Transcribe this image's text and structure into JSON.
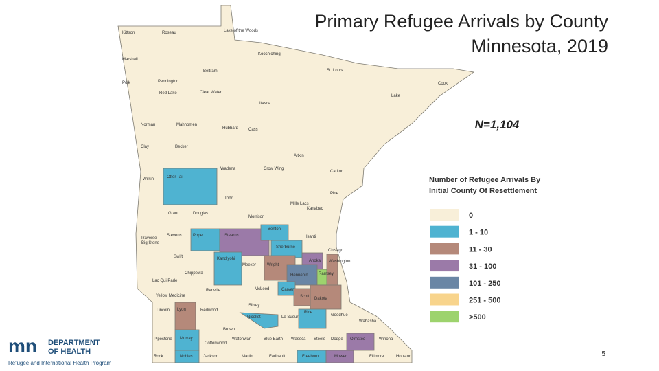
{
  "title": {
    "line1": "Primary Refugee Arrivals by County",
    "line2": "Minnesota, 2019"
  },
  "total": "N=1,104",
  "legend": {
    "title_line1": "Number of Refugee Arrivals By",
    "title_line2": "Initial County Of Resettlement",
    "items": [
      "0",
      "1 - 10",
      "11 - 30",
      "31 - 100",
      "101 - 250",
      "251 - 500",
      ">500"
    ]
  },
  "counties": [
    "Kittson",
    "Roseau",
    "Lake of the Woods",
    "Koochiching",
    "Marshall",
    "Beltrami",
    "St. Louis",
    "Cook",
    "Polk",
    "Pennington",
    "Red Lake",
    "Clear Water",
    "Lake",
    "Itasca",
    "Norman",
    "Mahnomen",
    "Hubbard",
    "Cass",
    "Clay",
    "Becker",
    "Aitkin",
    "Wadena",
    "Crow Wing",
    "Carlton",
    "Wilkin",
    "Otter Tail",
    "Todd",
    "Pine",
    "Mille Lacs",
    "Kanabec",
    "Grant",
    "Douglas",
    "Morrison",
    "Benton",
    "Isanti",
    "Traverse",
    "Stevens",
    "Pope",
    "Stearns",
    "Sherburne",
    "Chisago",
    "Big Stone",
    "Anoka",
    "Washington",
    "Swift",
    "Kandiyohi",
    "Meeker",
    "Wright",
    "Hennepin",
    "Ramsey",
    "Chippewa",
    "Lac Qui Parle",
    "Renville",
    "McLeod",
    "Carver",
    "Scott",
    "Dakota",
    "Yellow Medicine",
    "Sibley",
    "Lincoln",
    "Lyon",
    "Redwood",
    "Nicollet",
    "Le Sueur",
    "Rice",
    "Goodhue",
    "Wabasha",
    "Brown",
    "Pipestone",
    "Murray",
    "Cottonwood",
    "Watonwan",
    "Blue Earth",
    "Waseca",
    "Steele",
    "Dodge",
    "Olmsted",
    "Winona",
    "Rock",
    "Nobles",
    "Jackson",
    "Martin",
    "Faribault",
    "Freeborn",
    "Mower",
    "Fillmore",
    "Houston"
  ],
  "logo": {
    "line1": "DEPARTMENT",
    "line2": "OF HEALTH",
    "caption": "Refugee and International Health Program"
  },
  "page_number": "5"
}
